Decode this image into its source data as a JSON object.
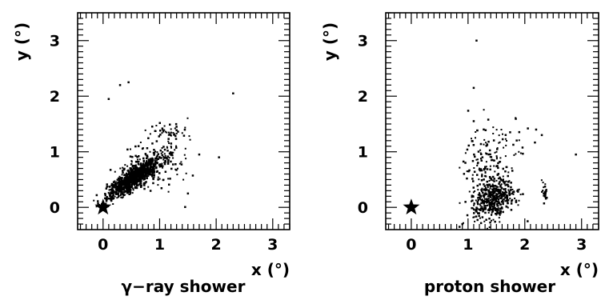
{
  "chart_data": [
    {
      "type": "scatter",
      "caption": "γ−ray shower",
      "xlabel": "x (°)",
      "ylabel": "y (°)",
      "xlim": [
        -0.45,
        3.3
      ],
      "ylim": [
        -0.4,
        3.5
      ],
      "xticks": [
        "0",
        "1",
        "2",
        "3"
      ],
      "yticks": [
        "0",
        "1",
        "2",
        "3"
      ],
      "source_marker": {
        "x": 0,
        "y": 0,
        "shape": "star"
      },
      "clusters": [
        {
          "cx": 0.52,
          "cy": 0.52,
          "sx": 0.22,
          "sy": 0.18,
          "rho": 0.85,
          "n": 900
        },
        {
          "cx": 0.75,
          "cy": 0.75,
          "sx": 0.3,
          "sy": 0.25,
          "rho": 0.6,
          "n": 180
        },
        {
          "cx": 1.15,
          "cy": 1.35,
          "sx": 0.18,
          "sy": 0.06,
          "rho": 0.0,
          "n": 40
        },
        {
          "cx": 1.1,
          "cy": 0.65,
          "sx": 0.25,
          "sy": 0.25,
          "rho": 0.0,
          "n": 60
        }
      ],
      "points": [
        {
          "x": 0.3,
          "y": 2.2
        },
        {
          "x": 0.45,
          "y": 2.25
        },
        {
          "x": 0.1,
          "y": 1.95
        },
        {
          "x": 2.3,
          "y": 2.05
        },
        {
          "x": 1.7,
          "y": 0.95
        },
        {
          "x": 1.5,
          "y": 0.25
        },
        {
          "x": 2.05,
          "y": 0.9
        },
        {
          "x": 1.3,
          "y": 1.45
        }
      ]
    },
    {
      "type": "scatter",
      "caption": "proton shower",
      "xlabel": "x (°)",
      "ylabel": "y (°)",
      "xlim": [
        -0.45,
        3.3
      ],
      "ylim": [
        -0.4,
        3.5
      ],
      "xticks": [
        "0",
        "1",
        "2",
        "3"
      ],
      "yticks": [
        "0",
        "1",
        "2",
        "3"
      ],
      "source_marker": {
        "x": 0,
        "y": 0,
        "shape": "star"
      },
      "clusters": [
        {
          "cx": 1.45,
          "cy": 0.15,
          "sx": 0.18,
          "sy": 0.18,
          "rho": 0.2,
          "n": 420
        },
        {
          "cx": 1.3,
          "cy": 0.7,
          "sx": 0.2,
          "sy": 0.35,
          "rho": 0.0,
          "n": 120
        },
        {
          "cx": 1.5,
          "cy": 1.1,
          "sx": 0.35,
          "sy": 0.3,
          "rho": 0.0,
          "n": 60
        },
        {
          "cx": 2.35,
          "cy": 0.25,
          "sx": 0.03,
          "sy": 0.12,
          "rho": 0.0,
          "n": 25
        }
      ],
      "points": [
        {
          "x": 1.1,
          "y": 2.15
        },
        {
          "x": 1.15,
          "y": 3.0
        },
        {
          "x": 1.1,
          "y": 1.55
        },
        {
          "x": 2.2,
          "y": 1.4
        },
        {
          "x": 2.3,
          "y": 1.3
        },
        {
          "x": 2.9,
          "y": 0.95
        },
        {
          "x": 0.85,
          "y": -0.35
        },
        {
          "x": 0.9,
          "y": -0.3
        },
        {
          "x": 2.05,
          "y": -0.25
        }
      ]
    }
  ]
}
